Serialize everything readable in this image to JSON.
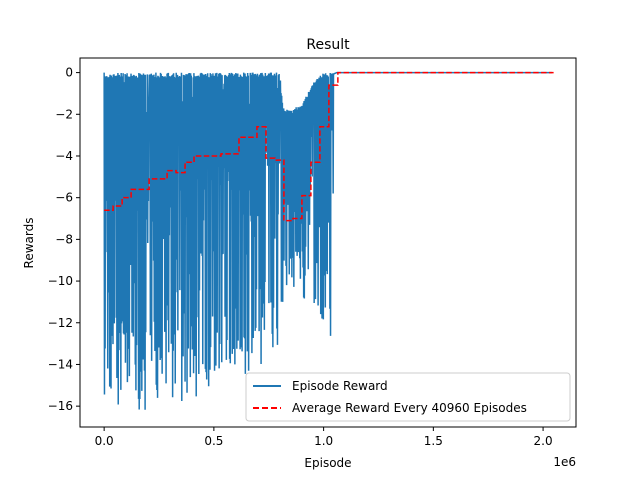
{
  "chart_data": {
    "type": "line",
    "title": "Result",
    "xlabel": "Episode",
    "ylabel": "Rewards",
    "x_offset_label": "1e6",
    "xlim": [
      -110000,
      2150000
    ],
    "ylim": [
      -17,
      0.7
    ],
    "x_ticks": [
      0,
      500000,
      1000000,
      1500000,
      2000000
    ],
    "x_tick_labels": [
      "0.0",
      "0.5",
      "1.0",
      "1.5",
      "2.0"
    ],
    "y_ticks": [
      0,
      -2,
      -4,
      -6,
      -8,
      -10,
      -12,
      -14,
      -16
    ],
    "y_tick_labels": [
      "0",
      "−2",
      "−4",
      "−6",
      "−8",
      "−10",
      "−12",
      "−14",
      "−16"
    ],
    "grid": false,
    "legend_position": "lower-right",
    "series": [
      {
        "name": "Episode Reward",
        "color": "#1f77b4",
        "style": "solid",
        "envelope": [
          {
            "x": 0,
            "max": 0.0,
            "min": -16.3
          },
          {
            "x": 100000,
            "max": 0.0,
            "min": -16.2
          },
          {
            "x": 200000,
            "max": 0.0,
            "min": -16.2
          },
          {
            "x": 300000,
            "max": 0.0,
            "min": -15.9
          },
          {
            "x": 400000,
            "max": 0.0,
            "min": -15.8
          },
          {
            "x": 500000,
            "max": 0.0,
            "min": -15.0
          },
          {
            "x": 600000,
            "max": 0.0,
            "min": -14.8
          },
          {
            "x": 700000,
            "max": 0.0,
            "min": -14.2
          },
          {
            "x": 800000,
            "max": 0.0,
            "min": -13.9
          },
          {
            "x": 815000,
            "max": -1.7,
            "min": -11.2
          },
          {
            "x": 850000,
            "max": -1.8,
            "min": -10.7
          },
          {
            "x": 900000,
            "max": -1.5,
            "min": -10.9
          },
          {
            "x": 950000,
            "max": -0.5,
            "min": -12.0
          },
          {
            "x": 1000000,
            "max": 0.0,
            "min": -12.5
          },
          {
            "x": 1040000,
            "max": 0.0,
            "min": -12.7
          },
          {
            "x": 1060000,
            "max": 0.0,
            "min": 0.0
          },
          {
            "x": 2040000,
            "max": 0.0,
            "min": 0.0
          }
        ]
      },
      {
        "name": "Average Reward Every 40960 Episodes",
        "color": "#ff0000",
        "style": "dashed",
        "steps": [
          {
            "x": 0,
            "y": -6.6
          },
          {
            "x": 40960,
            "y": -6.4
          },
          {
            "x": 81920,
            "y": -6.0
          },
          {
            "x": 122880,
            "y": -5.6
          },
          {
            "x": 163840,
            "y": -5.6
          },
          {
            "x": 204800,
            "y": -5.1
          },
          {
            "x": 245760,
            "y": -5.1
          },
          {
            "x": 286720,
            "y": -4.7
          },
          {
            "x": 327680,
            "y": -4.8
          },
          {
            "x": 368640,
            "y": -4.3
          },
          {
            "x": 409600,
            "y": -4.0
          },
          {
            "x": 450560,
            "y": -4.0
          },
          {
            "x": 491520,
            "y": -4.0
          },
          {
            "x": 532480,
            "y": -3.9
          },
          {
            "x": 573440,
            "y": -3.9
          },
          {
            "x": 614400,
            "y": -3.1
          },
          {
            "x": 655360,
            "y": -3.1
          },
          {
            "x": 696320,
            "y": -2.6
          },
          {
            "x": 737280,
            "y": -4.1
          },
          {
            "x": 778240,
            "y": -4.2
          },
          {
            "x": 819200,
            "y": -7.1
          },
          {
            "x": 860160,
            "y": -7.0
          },
          {
            "x": 901120,
            "y": -5.9
          },
          {
            "x": 942080,
            "y": -4.3
          },
          {
            "x": 983040,
            "y": -2.6
          },
          {
            "x": 1024000,
            "y": -0.6
          },
          {
            "x": 1064960,
            "y": 0.0
          },
          {
            "x": 1105920,
            "y": 0.0
          },
          {
            "x": 1146880,
            "y": 0.0
          },
          {
            "x": 2048000,
            "y": 0.0
          }
        ]
      }
    ]
  }
}
